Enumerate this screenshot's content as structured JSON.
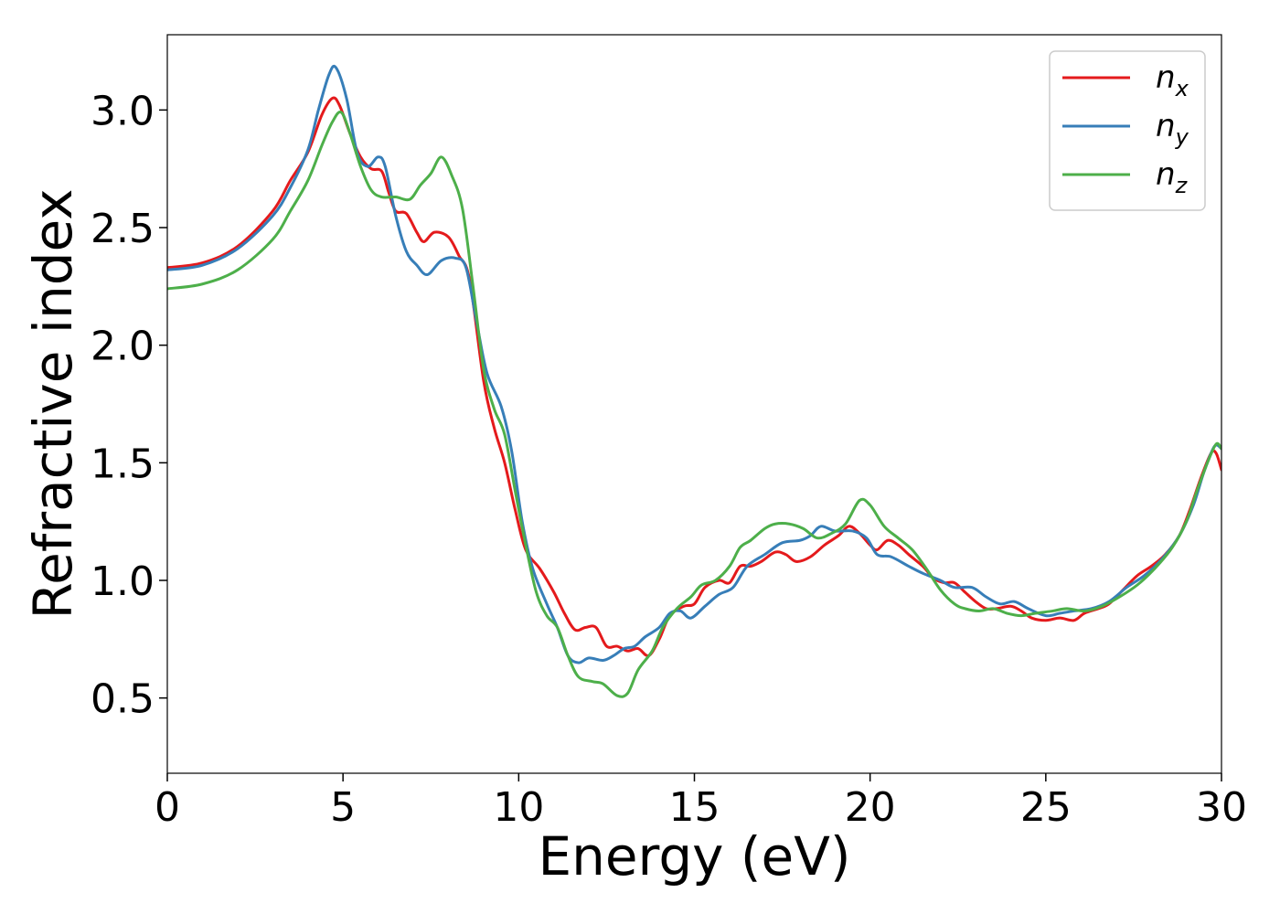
{
  "chart_data": {
    "type": "line",
    "title": "",
    "xlabel": "Energy (eV)",
    "ylabel": "Refractive index",
    "xlim": [
      0,
      30
    ],
    "ylim": [
      0.18,
      3.32
    ],
    "xticks": [
      0,
      5,
      10,
      15,
      20,
      25,
      30
    ],
    "yticks": [
      0.5,
      1.0,
      1.5,
      2.0,
      2.5,
      3.0
    ],
    "xtick_labels": [
      "0",
      "5",
      "10",
      "15",
      "20",
      "25",
      "30"
    ],
    "ytick_labels": [
      "0.5",
      "1.0",
      "1.5",
      "2.0",
      "2.5",
      "3.0"
    ],
    "grid": false,
    "legend_position": "top-right",
    "series": [
      {
        "name": "n",
        "subscript": "x",
        "color": "#e41a1c",
        "points": [
          [
            0,
            2.33
          ],
          [
            1,
            2.35
          ],
          [
            2,
            2.42
          ],
          [
            3,
            2.57
          ],
          [
            3.5,
            2.7
          ],
          [
            4,
            2.82
          ],
          [
            4.4,
            2.98
          ],
          [
            4.7,
            3.05
          ],
          [
            4.9,
            3.02
          ],
          [
            5.2,
            2.9
          ],
          [
            5.5,
            2.8
          ],
          [
            5.8,
            2.75
          ],
          [
            6.1,
            2.74
          ],
          [
            6.3,
            2.65
          ],
          [
            6.5,
            2.57
          ],
          [
            6.8,
            2.56
          ],
          [
            7.1,
            2.48
          ],
          [
            7.3,
            2.44
          ],
          [
            7.6,
            2.48
          ],
          [
            8,
            2.46
          ],
          [
            8.3,
            2.38
          ],
          [
            8.6,
            2.28
          ],
          [
            9,
            1.85
          ],
          [
            9.3,
            1.65
          ],
          [
            9.6,
            1.5
          ],
          [
            9.9,
            1.3
          ],
          [
            10.2,
            1.13
          ],
          [
            10.6,
            1.05
          ],
          [
            11,
            0.95
          ],
          [
            11.3,
            0.86
          ],
          [
            11.6,
            0.79
          ],
          [
            11.9,
            0.8
          ],
          [
            12.2,
            0.8
          ],
          [
            12.5,
            0.72
          ],
          [
            12.8,
            0.72
          ],
          [
            13.1,
            0.7
          ],
          [
            13.4,
            0.71
          ],
          [
            13.7,
            0.68
          ],
          [
            14,
            0.75
          ],
          [
            14.3,
            0.85
          ],
          [
            14.7,
            0.89
          ],
          [
            15,
            0.9
          ],
          [
            15.3,
            0.97
          ],
          [
            15.7,
            1.0
          ],
          [
            16,
            0.99
          ],
          [
            16.3,
            1.06
          ],
          [
            16.6,
            1.06
          ],
          [
            16.9,
            1.08
          ],
          [
            17.3,
            1.12
          ],
          [
            17.6,
            1.11
          ],
          [
            17.9,
            1.08
          ],
          [
            18.3,
            1.1
          ],
          [
            18.7,
            1.15
          ],
          [
            19.1,
            1.19
          ],
          [
            19.4,
            1.23
          ],
          [
            19.7,
            1.2
          ],
          [
            20,
            1.15
          ],
          [
            20.2,
            1.13
          ],
          [
            20.5,
            1.17
          ],
          [
            20.8,
            1.15
          ],
          [
            21.1,
            1.11
          ],
          [
            21.5,
            1.06
          ],
          [
            21.8,
            1.01
          ],
          [
            22.1,
            0.99
          ],
          [
            22.4,
            0.99
          ],
          [
            22.7,
            0.95
          ],
          [
            23,
            0.91
          ],
          [
            23.3,
            0.88
          ],
          [
            23.6,
            0.88
          ],
          [
            24,
            0.89
          ],
          [
            24.3,
            0.87
          ],
          [
            24.6,
            0.84
          ],
          [
            25,
            0.83
          ],
          [
            25.4,
            0.84
          ],
          [
            25.8,
            0.83
          ],
          [
            26.1,
            0.86
          ],
          [
            26.5,
            0.88
          ],
          [
            26.8,
            0.9
          ],
          [
            27.2,
            0.96
          ],
          [
            27.6,
            1.02
          ],
          [
            28,
            1.06
          ],
          [
            28.4,
            1.11
          ],
          [
            28.8,
            1.19
          ],
          [
            29.1,
            1.3
          ],
          [
            29.4,
            1.43
          ],
          [
            29.7,
            1.54
          ],
          [
            29.85,
            1.54
          ],
          [
            30,
            1.47
          ]
        ]
      },
      {
        "name": "n",
        "subscript": "y",
        "color": "#377eb8",
        "points": [
          [
            0,
            2.32
          ],
          [
            1,
            2.34
          ],
          [
            2,
            2.41
          ],
          [
            3,
            2.55
          ],
          [
            3.5,
            2.67
          ],
          [
            4,
            2.83
          ],
          [
            4.3,
            3.0
          ],
          [
            4.6,
            3.15
          ],
          [
            4.8,
            3.18
          ],
          [
            5.1,
            3.05
          ],
          [
            5.4,
            2.82
          ],
          [
            5.7,
            2.76
          ],
          [
            6,
            2.8
          ],
          [
            6.2,
            2.76
          ],
          [
            6.5,
            2.55
          ],
          [
            6.8,
            2.4
          ],
          [
            7.1,
            2.34
          ],
          [
            7.4,
            2.3
          ],
          [
            7.8,
            2.36
          ],
          [
            8.2,
            2.37
          ],
          [
            8.5,
            2.33
          ],
          [
            8.8,
            2.1
          ],
          [
            9.1,
            1.88
          ],
          [
            9.5,
            1.74
          ],
          [
            9.8,
            1.55
          ],
          [
            10.1,
            1.25
          ],
          [
            10.4,
            1.05
          ],
          [
            10.8,
            0.9
          ],
          [
            11.1,
            0.8
          ],
          [
            11.4,
            0.68
          ],
          [
            11.7,
            0.65
          ],
          [
            12,
            0.67
          ],
          [
            12.4,
            0.66
          ],
          [
            12.7,
            0.68
          ],
          [
            13,
            0.71
          ],
          [
            13.3,
            0.72
          ],
          [
            13.6,
            0.76
          ],
          [
            14,
            0.8
          ],
          [
            14.3,
            0.86
          ],
          [
            14.6,
            0.87
          ],
          [
            14.9,
            0.84
          ],
          [
            15.3,
            0.89
          ],
          [
            15.7,
            0.94
          ],
          [
            16.1,
            0.97
          ],
          [
            16.5,
            1.06
          ],
          [
            17,
            1.11
          ],
          [
            17.5,
            1.16
          ],
          [
            18,
            1.17
          ],
          [
            18.3,
            1.19
          ],
          [
            18.6,
            1.23
          ],
          [
            19,
            1.21
          ],
          [
            19.5,
            1.21
          ],
          [
            19.9,
            1.18
          ],
          [
            20.2,
            1.11
          ],
          [
            20.6,
            1.1
          ],
          [
            21.1,
            1.06
          ],
          [
            21.5,
            1.03
          ],
          [
            22,
            1.0
          ],
          [
            22.4,
            0.97
          ],
          [
            22.9,
            0.97
          ],
          [
            23.3,
            0.93
          ],
          [
            23.7,
            0.9
          ],
          [
            24.1,
            0.91
          ],
          [
            24.5,
            0.88
          ],
          [
            25,
            0.85
          ],
          [
            25.4,
            0.86
          ],
          [
            25.8,
            0.87
          ],
          [
            26.3,
            0.88
          ],
          [
            26.8,
            0.91
          ],
          [
            27.3,
            0.97
          ],
          [
            27.8,
            1.02
          ],
          [
            28.3,
            1.09
          ],
          [
            28.8,
            1.19
          ],
          [
            29.2,
            1.32
          ],
          [
            29.5,
            1.46
          ],
          [
            29.8,
            1.57
          ],
          [
            30,
            1.56
          ]
        ]
      },
      {
        "name": "n",
        "subscript": "z",
        "color": "#4daf4a",
        "points": [
          [
            0,
            2.24
          ],
          [
            1,
            2.26
          ],
          [
            2,
            2.32
          ],
          [
            3,
            2.45
          ],
          [
            3.5,
            2.57
          ],
          [
            4,
            2.7
          ],
          [
            4.4,
            2.85
          ],
          [
            4.7,
            2.95
          ],
          [
            4.95,
            2.99
          ],
          [
            5.2,
            2.9
          ],
          [
            5.5,
            2.76
          ],
          [
            5.8,
            2.66
          ],
          [
            6.1,
            2.63
          ],
          [
            6.5,
            2.63
          ],
          [
            6.9,
            2.62
          ],
          [
            7.2,
            2.68
          ],
          [
            7.5,
            2.73
          ],
          [
            7.8,
            2.8
          ],
          [
            8.1,
            2.72
          ],
          [
            8.4,
            2.58
          ],
          [
            8.7,
            2.25
          ],
          [
            9,
            1.9
          ],
          [
            9.3,
            1.73
          ],
          [
            9.6,
            1.62
          ],
          [
            9.9,
            1.38
          ],
          [
            10.2,
            1.15
          ],
          [
            10.5,
            0.95
          ],
          [
            10.8,
            0.85
          ],
          [
            11.1,
            0.8
          ],
          [
            11.4,
            0.68
          ],
          [
            11.7,
            0.59
          ],
          [
            12.1,
            0.57
          ],
          [
            12.4,
            0.56
          ],
          [
            12.8,
            0.51
          ],
          [
            13.1,
            0.52
          ],
          [
            13.4,
            0.62
          ],
          [
            13.8,
            0.7
          ],
          [
            14.1,
            0.8
          ],
          [
            14.5,
            0.88
          ],
          [
            14.9,
            0.93
          ],
          [
            15.2,
            0.98
          ],
          [
            15.6,
            1.0
          ],
          [
            16,
            1.06
          ],
          [
            16.3,
            1.14
          ],
          [
            16.6,
            1.17
          ],
          [
            17,
            1.22
          ],
          [
            17.3,
            1.24
          ],
          [
            17.7,
            1.24
          ],
          [
            18.1,
            1.22
          ],
          [
            18.5,
            1.18
          ],
          [
            18.9,
            1.2
          ],
          [
            19.3,
            1.24
          ],
          [
            19.7,
            1.34
          ],
          [
            20,
            1.32
          ],
          [
            20.4,
            1.23
          ],
          [
            20.8,
            1.18
          ],
          [
            21.2,
            1.13
          ],
          [
            21.6,
            1.05
          ],
          [
            22,
            0.96
          ],
          [
            22.4,
            0.9
          ],
          [
            22.7,
            0.88
          ],
          [
            23.1,
            0.87
          ],
          [
            23.5,
            0.88
          ],
          [
            23.9,
            0.86
          ],
          [
            24.3,
            0.85
          ],
          [
            24.7,
            0.86
          ],
          [
            25.2,
            0.87
          ],
          [
            25.6,
            0.88
          ],
          [
            26.1,
            0.87
          ],
          [
            26.6,
            0.89
          ],
          [
            27.1,
            0.93
          ],
          [
            27.6,
            0.98
          ],
          [
            28.1,
            1.05
          ],
          [
            28.6,
            1.14
          ],
          [
            29,
            1.25
          ],
          [
            29.3,
            1.38
          ],
          [
            29.6,
            1.5
          ],
          [
            29.85,
            1.58
          ],
          [
            30,
            1.56
          ]
        ]
      }
    ]
  }
}
